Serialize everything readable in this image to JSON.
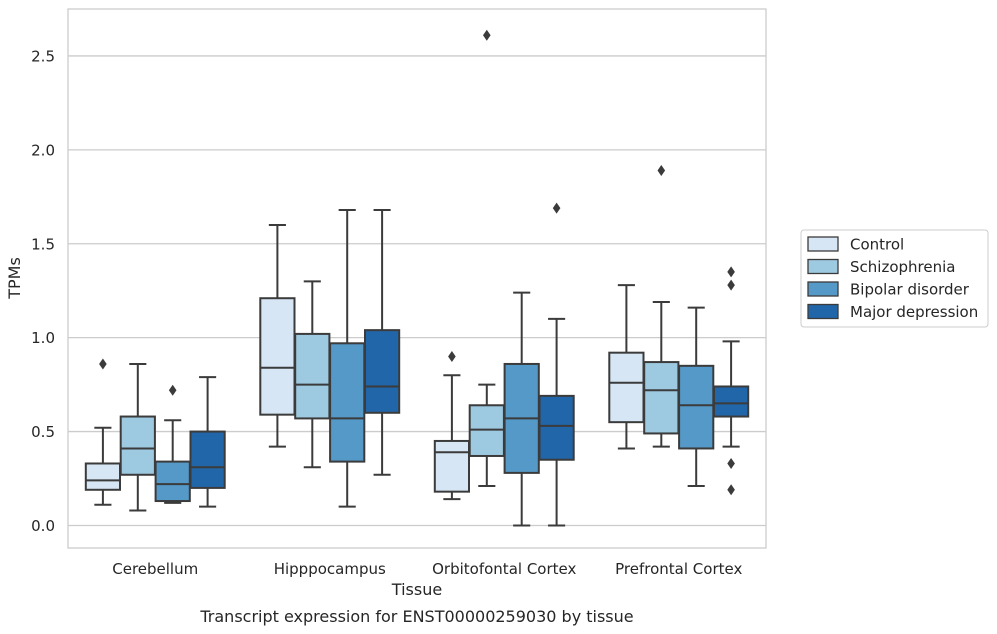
{
  "chart_data": {
    "type": "boxplot",
    "xlabel": "Tissue",
    "ylabel": "TPMs",
    "caption": "Transcript expression for ENST00000259030 by tissue",
    "categories": [
      "Cerebellum",
      "Hipppocampus",
      "Orbitofontal Cortex",
      "Prefrontal Cortex"
    ],
    "ylim": [
      -0.12,
      2.75
    ],
    "yticks": [
      0.0,
      0.5,
      1.0,
      1.5,
      2.0,
      2.5
    ],
    "ytick_labels": [
      "0.0",
      "0.5",
      "1.0",
      "1.5",
      "2.0",
      "2.5"
    ],
    "grid": true,
    "legend": {
      "position": "right",
      "entries": [
        "Control",
        "Schizophrenia",
        "Bipolar disorder",
        "Major depression"
      ]
    },
    "series": [
      {
        "name": "Control",
        "color": "#d6e6f4",
        "boxes": [
          {
            "whislo": 0.11,
            "q1": 0.19,
            "med": 0.24,
            "q3": 0.33,
            "whishi": 0.52,
            "fliers": [
              0.86
            ]
          },
          {
            "whislo": 0.42,
            "q1": 0.59,
            "med": 0.84,
            "q3": 1.21,
            "whishi": 1.6,
            "fliers": []
          },
          {
            "whislo": 0.14,
            "q1": 0.18,
            "med": 0.39,
            "q3": 0.45,
            "whishi": 0.8,
            "fliers": [
              0.9
            ]
          },
          {
            "whislo": 0.41,
            "q1": 0.55,
            "med": 0.76,
            "q3": 0.92,
            "whishi": 1.28,
            "fliers": []
          }
        ]
      },
      {
        "name": "Schizophrenia",
        "color": "#9ecae1",
        "boxes": [
          {
            "whislo": 0.08,
            "q1": 0.27,
            "med": 0.41,
            "q3": 0.58,
            "whishi": 0.86,
            "fliers": []
          },
          {
            "whislo": 0.31,
            "q1": 0.57,
            "med": 0.75,
            "q3": 1.02,
            "whishi": 1.3,
            "fliers": []
          },
          {
            "whislo": 0.21,
            "q1": 0.37,
            "med": 0.51,
            "q3": 0.64,
            "whishi": 0.75,
            "fliers": [
              2.61
            ]
          },
          {
            "whislo": 0.42,
            "q1": 0.49,
            "med": 0.72,
            "q3": 0.87,
            "whishi": 1.19,
            "fliers": [
              1.89
            ]
          }
        ]
      },
      {
        "name": "Bipolar disorder",
        "color": "#5599c8",
        "boxes": [
          {
            "whislo": 0.12,
            "q1": 0.13,
            "med": 0.22,
            "q3": 0.34,
            "whishi": 0.56,
            "fliers": [
              0.72
            ]
          },
          {
            "whislo": 0.1,
            "q1": 0.34,
            "med": 0.57,
            "q3": 0.97,
            "whishi": 1.68,
            "fliers": []
          },
          {
            "whislo": 0.0,
            "q1": 0.28,
            "med": 0.57,
            "q3": 0.86,
            "whishi": 1.24,
            "fliers": []
          },
          {
            "whislo": 0.21,
            "q1": 0.41,
            "med": 0.64,
            "q3": 0.85,
            "whishi": 1.16,
            "fliers": []
          }
        ]
      },
      {
        "name": "Major depression",
        "color": "#2266aa",
        "boxes": [
          {
            "whislo": 0.1,
            "q1": 0.2,
            "med": 0.31,
            "q3": 0.5,
            "whishi": 0.79,
            "fliers": []
          },
          {
            "whislo": 0.27,
            "q1": 0.6,
            "med": 0.74,
            "q3": 1.04,
            "whishi": 1.68,
            "fliers": []
          },
          {
            "whislo": 0.0,
            "q1": 0.35,
            "med": 0.53,
            "q3": 0.69,
            "whishi": 1.1,
            "fliers": [
              1.69
            ]
          },
          {
            "whislo": 0.42,
            "q1": 0.58,
            "med": 0.65,
            "q3": 0.74,
            "whishi": 0.98,
            "fliers": [
              1.35,
              1.28,
              0.33,
              0.19
            ]
          }
        ]
      }
    ]
  }
}
